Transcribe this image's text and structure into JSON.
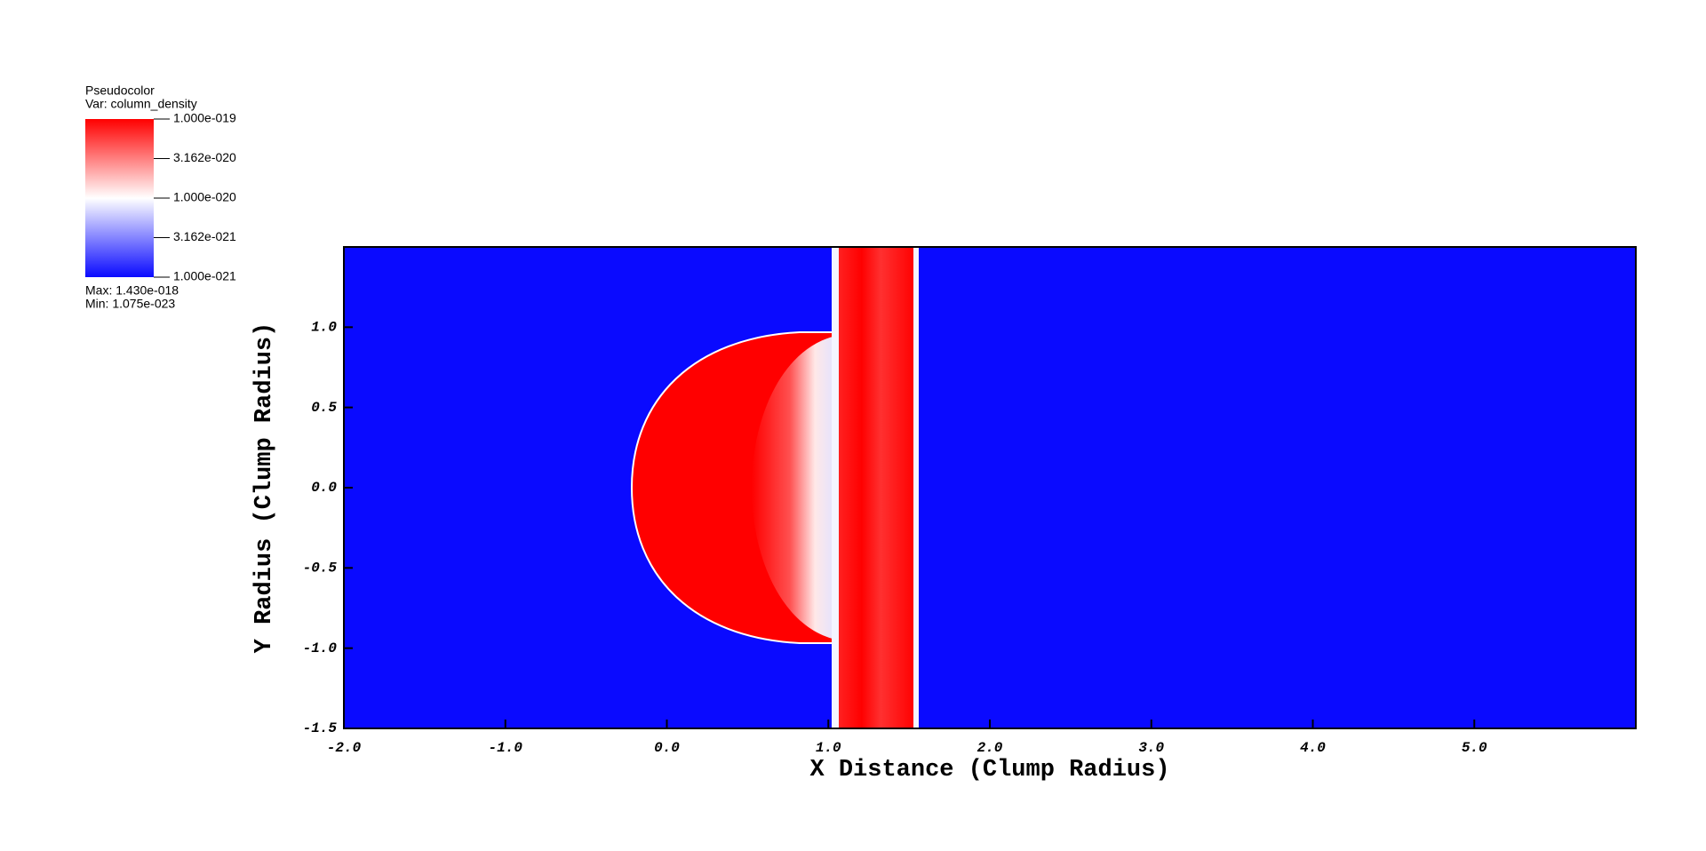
{
  "chart_data": {
    "type": "pseudocolor",
    "legend_title": "Pseudocolor",
    "variable": "Var: column_density",
    "max_label": "Max:  1.430e-018",
    "min_label": "Min:  1.075e-023",
    "colorbar": {
      "clim": [
        1e-21,
        1e-19
      ],
      "log": true,
      "colors": [
        "#0a0aff",
        "#ffffff",
        "#ff0000"
      ],
      "ticks": [
        {
          "value": 1e-19,
          "label": "1.000e-019"
        },
        {
          "value": 3.162e-20,
          "label": "3.162e-020"
        },
        {
          "value": 1e-20,
          "label": "1.000e-020"
        },
        {
          "value": 3.162e-21,
          "label": "3.162e-021"
        },
        {
          "value": 1e-21,
          "label": "1.000e-021"
        }
      ]
    },
    "xlabel": "X Distance (Clump Radius)",
    "ylabel": "Y Radius (Clump Radius)",
    "xlim": [
      -2,
      6
    ],
    "ylim": [
      -1.5,
      1.5
    ],
    "xticks": [
      {
        "value": -2,
        "label": "-2.0"
      },
      {
        "value": -1,
        "label": "-1.0"
      },
      {
        "value": 0,
        "label": "0.0"
      },
      {
        "value": 1,
        "label": "1.0"
      },
      {
        "value": 2,
        "label": "2.0"
      },
      {
        "value": 3,
        "label": "3.0"
      },
      {
        "value": 4,
        "label": "4.0"
      },
      {
        "value": 5,
        "label": "5.0"
      }
    ],
    "yticks": [
      -1.5,
      {
        "value": -1,
        "label": "-1.0"
      },
      -0.5,
      {
        "value": 0,
        "label": "0.0"
      },
      0.5,
      {
        "value": 1,
        "label": "1.0"
      }
    ]
  }
}
